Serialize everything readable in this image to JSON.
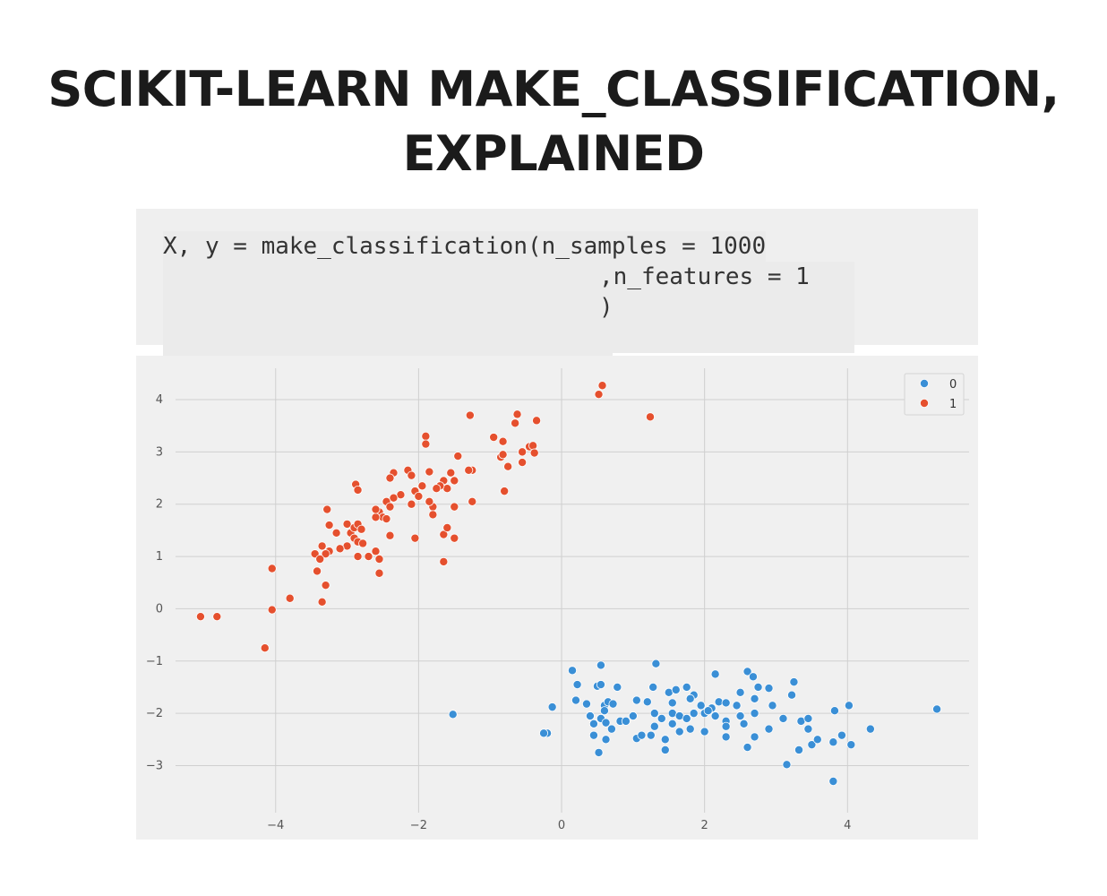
{
  "page": {
    "title_line1": "SCIKIT-LEARN MAKE_CLASSIFICATION,",
    "title_line2": "EXPLAINED"
  },
  "code": {
    "line1": "X, y = make_classification(n_samples = 1000",
    "line2": ",n_features = 1",
    "line3": ")"
  },
  "colors": {
    "class0": "#3a8fd6",
    "class1": "#e5502e",
    "grid": "#cfcfcf",
    "plot_bg": "#f0f0f0"
  },
  "chart_data": {
    "type": "scatter",
    "title": "",
    "xlabel": "",
    "ylabel": "",
    "xlim": [
      -5.4,
      5.7
    ],
    "ylim": [
      -3.9,
      4.6
    ],
    "xticks": [
      -4,
      -2,
      0,
      2,
      4
    ],
    "yticks": [
      4,
      3,
      2,
      1,
      0,
      -1,
      -2,
      -3
    ],
    "xtick_labels": [
      "−4",
      "−2",
      "0",
      "2",
      "4"
    ],
    "ytick_labels": [
      "4",
      "3",
      "2",
      "1",
      "0",
      "−1",
      "−2",
      "−3"
    ],
    "grid": true,
    "legend_position": "top-right",
    "series": [
      {
        "name": "0",
        "points": [
          [
            0.15,
            -1.18
          ],
          [
            0.55,
            -1.08
          ],
          [
            1.32,
            -1.05
          ],
          [
            2.15,
            -1.25
          ],
          [
            2.6,
            -1.2
          ],
          [
            2.68,
            -1.3
          ],
          [
            3.25,
            -1.4
          ],
          [
            0.22,
            -1.45
          ],
          [
            0.5,
            -1.48
          ],
          [
            0.55,
            -1.45
          ],
          [
            0.78,
            -1.5
          ],
          [
            1.28,
            -1.5
          ],
          [
            1.5,
            -1.6
          ],
          [
            1.6,
            -1.55
          ],
          [
            1.75,
            -1.5
          ],
          [
            1.85,
            -1.65
          ],
          [
            2.5,
            -1.6
          ],
          [
            2.75,
            -1.5
          ],
          [
            2.9,
            -1.52
          ],
          [
            3.22,
            -1.65
          ],
          [
            0.2,
            -1.75
          ],
          [
            0.35,
            -1.82
          ],
          [
            0.6,
            -1.85
          ],
          [
            0.65,
            -1.78
          ],
          [
            0.72,
            -1.82
          ],
          [
            1.05,
            -1.75
          ],
          [
            1.2,
            -1.78
          ],
          [
            1.55,
            -1.8
          ],
          [
            1.8,
            -1.72
          ],
          [
            1.95,
            -1.85
          ],
          [
            2.1,
            -1.9
          ],
          [
            2.2,
            -1.78
          ],
          [
            2.3,
            -1.8
          ],
          [
            2.45,
            -1.85
          ],
          [
            2.7,
            -1.72
          ],
          [
            2.95,
            -1.85
          ],
          [
            -0.13,
            -1.88
          ],
          [
            0.4,
            -2.05
          ],
          [
            0.55,
            -2.1
          ],
          [
            0.6,
            -1.95
          ],
          [
            0.82,
            -2.15
          ],
          [
            0.9,
            -2.15
          ],
          [
            1.0,
            -2.05
          ],
          [
            1.3,
            -2.0
          ],
          [
            1.4,
            -2.1
          ],
          [
            1.55,
            -2.0
          ],
          [
            1.65,
            -2.05
          ],
          [
            1.75,
            -2.1
          ],
          [
            1.85,
            -2.0
          ],
          [
            2.0,
            -2.0
          ],
          [
            2.05,
            -1.95
          ],
          [
            2.15,
            -2.05
          ],
          [
            2.3,
            -2.15
          ],
          [
            2.5,
            -2.05
          ],
          [
            2.7,
            -2.0
          ],
          [
            3.1,
            -2.1
          ],
          [
            3.35,
            -2.15
          ],
          [
            3.45,
            -2.1
          ],
          [
            0.45,
            -2.2
          ],
          [
            0.62,
            -2.18
          ],
          [
            0.7,
            -2.3
          ],
          [
            1.3,
            -2.25
          ],
          [
            1.55,
            -2.2
          ],
          [
            1.65,
            -2.35
          ],
          [
            1.8,
            -2.3
          ],
          [
            2.0,
            -2.35
          ],
          [
            2.3,
            -2.25
          ],
          [
            2.55,
            -2.2
          ],
          [
            2.9,
            -2.3
          ],
          [
            3.45,
            -2.3
          ],
          [
            3.82,
            -1.95
          ],
          [
            4.02,
            -1.85
          ],
          [
            5.25,
            -1.92
          ],
          [
            -0.2,
            -2.38
          ],
          [
            -0.25,
            -2.38
          ],
          [
            0.45,
            -2.42
          ],
          [
            0.62,
            -2.5
          ],
          [
            1.05,
            -2.48
          ],
          [
            1.12,
            -2.42
          ],
          [
            1.25,
            -2.42
          ],
          [
            1.45,
            -2.5
          ],
          [
            2.3,
            -2.45
          ],
          [
            2.7,
            -2.45
          ],
          [
            3.5,
            -2.6
          ],
          [
            3.58,
            -2.5
          ],
          [
            3.8,
            -2.55
          ],
          [
            3.92,
            -2.42
          ],
          [
            4.05,
            -2.6
          ],
          [
            4.32,
            -2.3
          ],
          [
            0.52,
            -2.75
          ],
          [
            1.45,
            -2.7
          ],
          [
            2.6,
            -2.65
          ],
          [
            3.32,
            -2.7
          ],
          [
            3.15,
            -2.98
          ],
          [
            3.8,
            -3.3
          ],
          [
            -1.52,
            -2.02
          ]
        ]
      },
      {
        "name": "1",
        "points": [
          [
            0.52,
            4.1
          ],
          [
            0.57,
            4.27
          ],
          [
            1.24,
            3.67
          ],
          [
            -1.28,
            3.7
          ],
          [
            -0.62,
            3.72
          ],
          [
            -0.65,
            3.55
          ],
          [
            -0.35,
            3.6
          ],
          [
            -1.9,
            3.3
          ],
          [
            -1.9,
            3.15
          ],
          [
            -0.95,
            3.28
          ],
          [
            -0.82,
            3.2
          ],
          [
            -0.45,
            3.1
          ],
          [
            -0.4,
            3.12
          ],
          [
            -0.38,
            2.98
          ],
          [
            -0.85,
            2.9
          ],
          [
            -0.82,
            2.95
          ],
          [
            -0.75,
            2.72
          ],
          [
            -0.55,
            3.0
          ],
          [
            -0.55,
            2.8
          ],
          [
            -1.45,
            2.92
          ],
          [
            -1.25,
            2.65
          ],
          [
            -1.3,
            2.65
          ],
          [
            -1.85,
            2.62
          ],
          [
            -1.55,
            2.6
          ],
          [
            -2.15,
            2.65
          ],
          [
            -2.35,
            2.6
          ],
          [
            -2.4,
            2.5
          ],
          [
            -2.1,
            2.55
          ],
          [
            -1.5,
            2.45
          ],
          [
            -1.6,
            2.3
          ],
          [
            -1.65,
            2.45
          ],
          [
            -1.7,
            2.35
          ],
          [
            -1.75,
            2.3
          ],
          [
            -1.95,
            2.35
          ],
          [
            -2.05,
            2.25
          ],
          [
            -2.0,
            2.15
          ],
          [
            -2.25,
            2.18
          ],
          [
            -2.35,
            2.12
          ],
          [
            -2.45,
            2.05
          ],
          [
            -2.4,
            1.95
          ],
          [
            -2.55,
            1.85
          ],
          [
            -2.5,
            1.75
          ],
          [
            -2.6,
            1.75
          ],
          [
            -2.6,
            1.9
          ],
          [
            -2.1,
            2.0
          ],
          [
            -1.8,
            1.95
          ],
          [
            -1.5,
            1.95
          ],
          [
            -1.25,
            2.05
          ],
          [
            -0.8,
            2.25
          ],
          [
            -1.85,
            2.05
          ],
          [
            -2.88,
            2.38
          ],
          [
            -2.85,
            2.27
          ],
          [
            -3.28,
            1.9
          ],
          [
            -3.25,
            1.6
          ],
          [
            -3.15,
            1.45
          ],
          [
            -3.0,
            1.62
          ],
          [
            -2.95,
            1.45
          ],
          [
            -2.9,
            1.55
          ],
          [
            -2.85,
            1.62
          ],
          [
            -2.8,
            1.52
          ],
          [
            -2.9,
            1.35
          ],
          [
            -2.85,
            1.28
          ],
          [
            -2.78,
            1.25
          ],
          [
            -3.0,
            1.2
          ],
          [
            -3.35,
            1.2
          ],
          [
            -3.1,
            1.15
          ],
          [
            -2.6,
            1.1
          ],
          [
            -1.65,
            1.42
          ],
          [
            -1.6,
            1.55
          ],
          [
            -1.5,
            1.35
          ],
          [
            -2.05,
            1.35
          ],
          [
            -1.8,
            1.8
          ],
          [
            -2.45,
            1.72
          ],
          [
            -2.4,
            1.4
          ],
          [
            -3.45,
            1.05
          ],
          [
            -3.25,
            1.1
          ],
          [
            -3.3,
            1.05
          ],
          [
            -2.85,
            1.0
          ],
          [
            -2.7,
            1.0
          ],
          [
            -2.55,
            0.95
          ],
          [
            -3.42,
            0.72
          ],
          [
            -3.38,
            0.95
          ],
          [
            -3.3,
            0.45
          ],
          [
            -2.55,
            0.68
          ],
          [
            -1.65,
            0.9
          ],
          [
            -4.05,
            0.77
          ],
          [
            -3.8,
            0.2
          ],
          [
            -3.35,
            0.13
          ],
          [
            -4.05,
            -0.02
          ],
          [
            -5.05,
            -0.15
          ],
          [
            -4.82,
            -0.15
          ],
          [
            -4.15,
            -0.75
          ]
        ]
      }
    ]
  }
}
